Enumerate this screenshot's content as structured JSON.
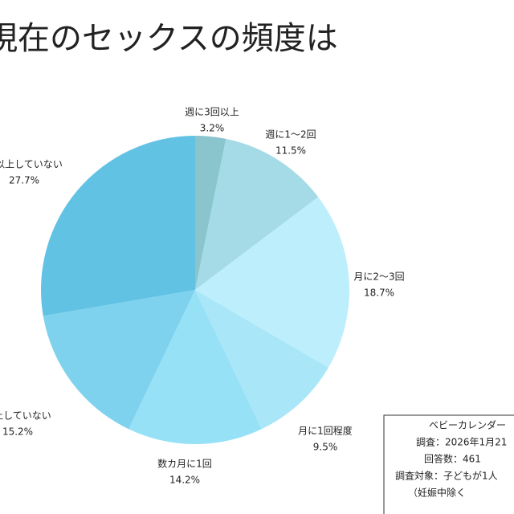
{
  "chart_data": {
    "type": "pie",
    "title": "現在のセックスの頻度は",
    "categories": [
      "週に3回以上",
      "週に1〜2回",
      "月に2〜3回",
      "月に1回程度",
      "数カ月に1回",
      "以上していない",
      "年以上していない"
    ],
    "values": [
      3.2,
      11.5,
      18.7,
      9.5,
      14.2,
      15.2,
      27.7
    ],
    "value_labels": [
      "3.2%",
      "11.5%",
      "18.7%",
      "9.5%",
      "14.2%",
      "15.2%",
      "27.7%"
    ],
    "colors": [
      "#8ac4cc",
      "#a4dbe6",
      "#bdeefb",
      "#a9e6f8",
      "#97e1f7",
      "#7ed2ee",
      "#62c2e4"
    ]
  },
  "source_box": {
    "lines": [
      "ベビーカレンダー",
      "調査：2026年1月21",
      "回答数：461",
      "調査対象：子どもが1人",
      "（妊娠中除く"
    ]
  }
}
